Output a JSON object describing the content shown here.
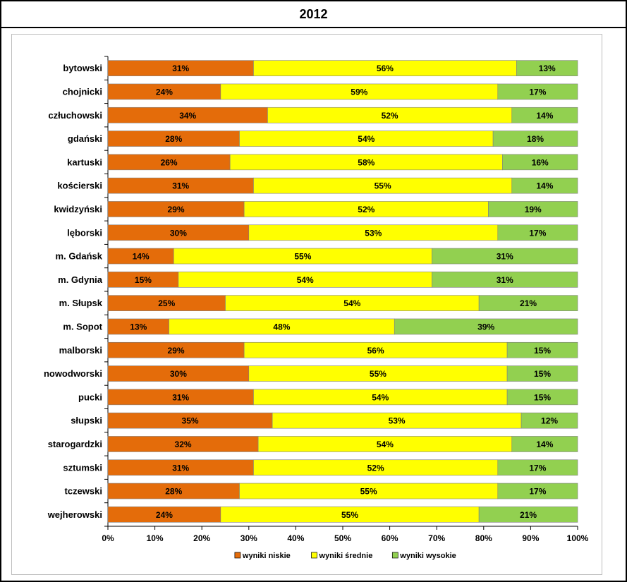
{
  "chart_data": {
    "type": "bar",
    "orientation": "horizontal",
    "stacked": true,
    "title": "2012",
    "categories": [
      "bytowski",
      "chojnicki",
      "człuchowski",
      "gdański",
      "kartuski",
      "kościerski",
      "kwidzyński",
      "lęborski",
      "m. Gdańsk",
      "m. Gdynia",
      "m. Słupsk",
      "m. Sopot",
      "malborski",
      "nowodworski",
      "pucki",
      "słupski",
      "starogardzki",
      "sztumski",
      "tczewski",
      "wejherowski"
    ],
    "series": [
      {
        "name": "wyniki niskie",
        "color": "#e46c0a",
        "values": [
          31,
          24,
          34,
          28,
          26,
          31,
          29,
          30,
          14,
          15,
          25,
          13,
          29,
          30,
          31,
          35,
          32,
          31,
          28,
          24
        ],
        "labels": [
          "31%",
          "24%",
          "34%",
          "28%",
          "26%",
          "31%",
          "29%",
          "30%",
          "14%",
          "15%",
          "25%",
          "13%",
          "29%",
          "30%",
          "31%",
          "35%",
          "32%",
          "31%",
          "28%",
          "24%"
        ]
      },
      {
        "name": "wyniki średnie",
        "color": "#ffff00",
        "values": [
          56,
          59,
          52,
          54,
          58,
          55,
          52,
          53,
          55,
          54,
          54,
          48,
          56,
          55,
          54,
          53,
          54,
          52,
          55,
          55
        ],
        "labels": [
          "56%",
          "59%",
          "52%",
          "54%",
          "58%",
          "55%",
          "52%",
          "53%",
          "55%",
          "54%",
          "54%",
          "48%",
          "56%",
          "55%",
          "54%",
          "53%",
          "54%",
          "52%",
          "55%",
          "55%"
        ]
      },
      {
        "name": "wyniki wysokie",
        "color": "#92d050",
        "values": [
          13,
          17,
          14,
          18,
          16,
          14,
          19,
          17,
          31,
          31,
          21,
          39,
          15,
          15,
          15,
          12,
          14,
          17,
          17,
          21
        ],
        "labels": [
          "13%",
          "17%",
          "14%",
          "18%",
          "16%",
          "14%",
          "19%",
          "17%",
          "31%",
          "31%",
          "21%",
          "39%",
          "15%",
          "15%",
          "15%",
          "12%",
          "14%",
          "17%",
          "17%",
          "21%"
        ]
      }
    ],
    "xlim": [
      0,
      100
    ],
    "x_ticks": [
      "0%",
      "10%",
      "20%",
      "30%",
      "40%",
      "50%",
      "60%",
      "70%",
      "80%",
      "90%",
      "100%"
    ],
    "grid": false,
    "legend": "bottom"
  }
}
